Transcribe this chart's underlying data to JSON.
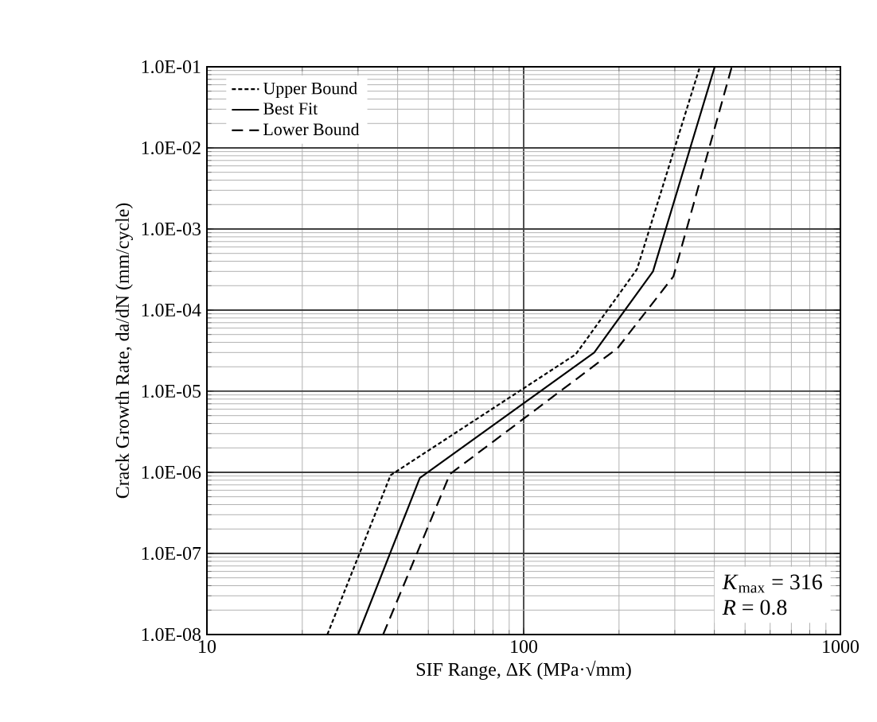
{
  "chart_data": {
    "type": "line",
    "xlabel": "SIF Range, ΔK (MPa·√mm)",
    "ylabel": "Crack Growth Rate, da/dN (mm/cycle)",
    "log": "xy",
    "xlim": [
      10,
      1000
    ],
    "xticks": [
      10,
      100,
      1000
    ],
    "ylim": [
      1e-08,
      0.1
    ],
    "yticks": [
      {
        "value": 1e-08,
        "label": "1.0E-08"
      },
      {
        "value": 1e-07,
        "label": "1.0E-07"
      },
      {
        "value": 1e-06,
        "label": "1.0E-06"
      },
      {
        "value": 1e-05,
        "label": "1.0E-05"
      },
      {
        "value": 0.0001,
        "label": "1.0E-04"
      },
      {
        "value": 0.001,
        "label": "1.0E-03"
      },
      {
        "value": 0.01,
        "label": "1.0E-02"
      },
      {
        "value": 0.1,
        "label": "1.0E-01"
      }
    ],
    "grid": true,
    "legend": "top left",
    "series": [
      {
        "name": "Upper Bound",
        "color": "#000000",
        "line_style": "dotted",
        "x": [
          24,
          38,
          146,
          228,
          360
        ],
        "values": [
          1e-08,
          9.2e-07,
          2.85e-05,
          0.00032,
          0.1
        ]
      },
      {
        "name": "Best Fit",
        "color": "#000000",
        "line_style": "solid",
        "x": [
          30,
          47,
          167,
          256,
          401
        ],
        "values": [
          1e-08,
          8.5e-07,
          3e-05,
          0.0003,
          0.1
        ]
      },
      {
        "name": "Lower Bound",
        "color": "#000000",
        "line_style": "dashed",
        "x": [
          36,
          58.5,
          198,
          297,
          454
        ],
        "values": [
          1e-08,
          9.5e-07,
          3.4e-05,
          0.00026,
          0.1
        ]
      }
    ],
    "annotations": [
      "*K*$_{max}$ = 316",
      "*R* = 0.8"
    ]
  }
}
